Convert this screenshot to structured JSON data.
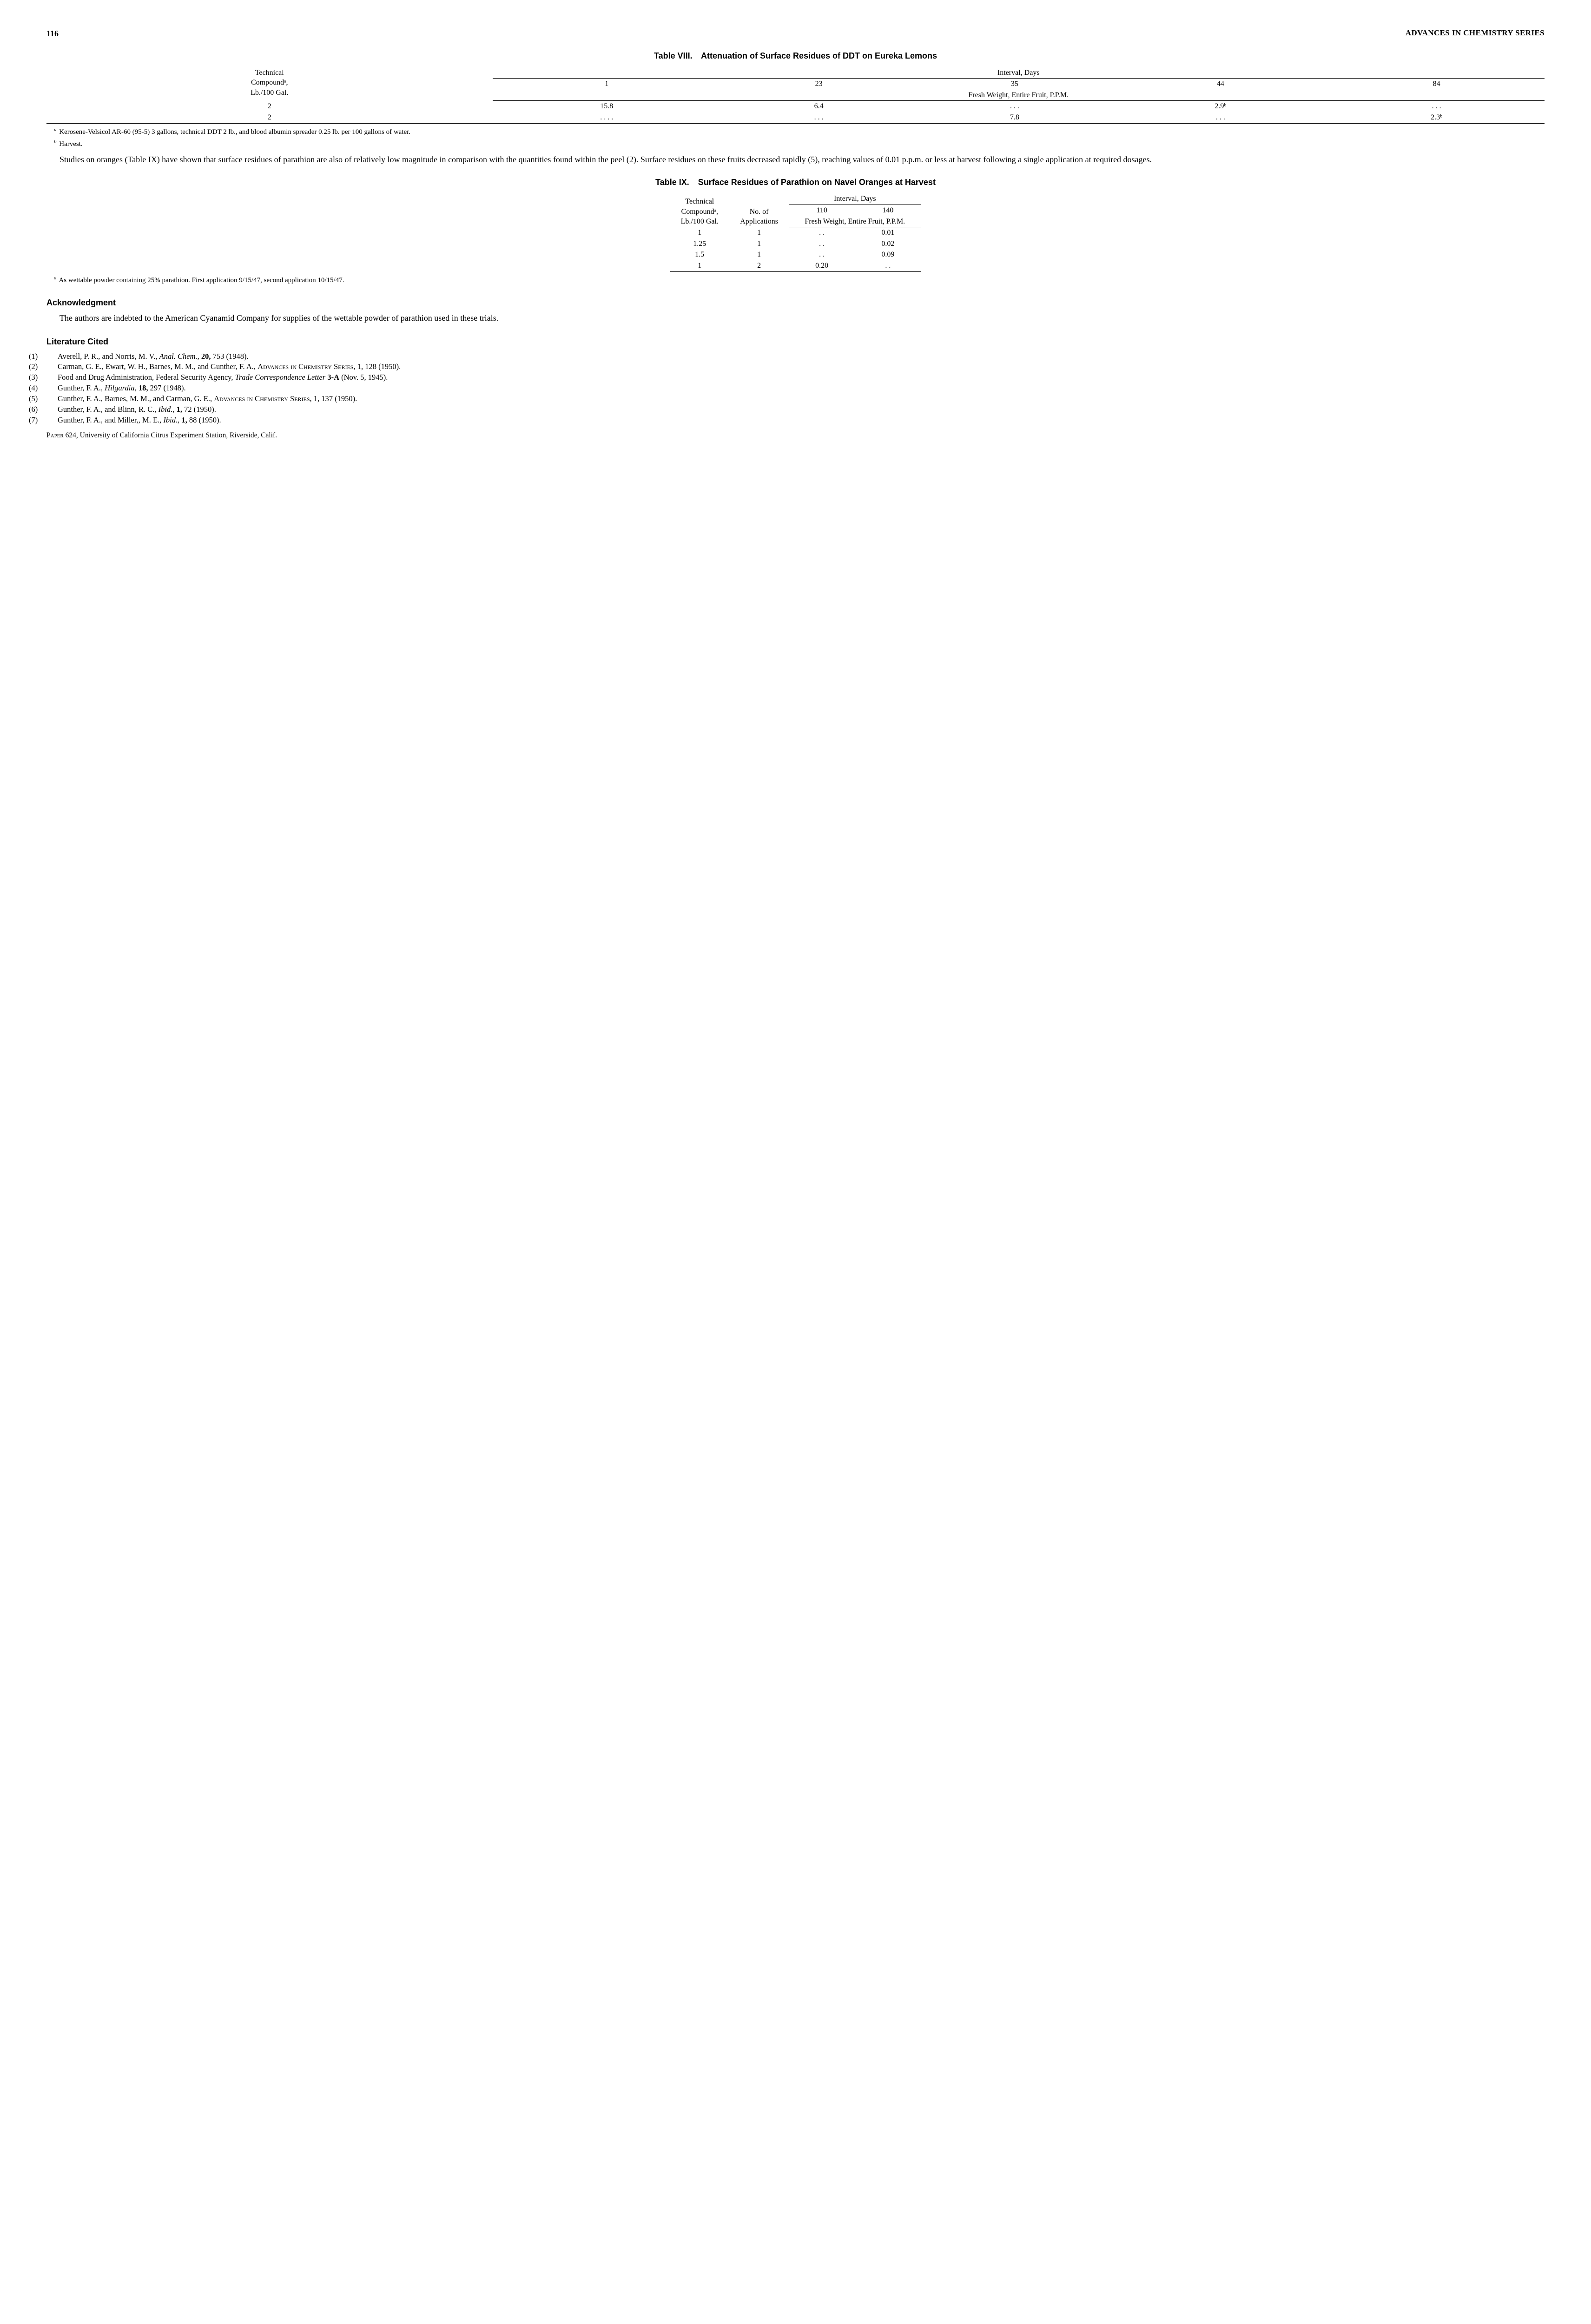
{
  "header": {
    "page": "116",
    "series": "ADVANCES IN CHEMISTRY SERIES"
  },
  "table8": {
    "title_no": "Table VIII.",
    "title_text": "Attenuation of Surface Residues of DDT on Eureka Lemons",
    "rowhead_l1": "Technical",
    "rowhead_l2": "Compoundᵃ,",
    "rowhead_l3": "Lb./100 Gal.",
    "spanning": "Interval, Days",
    "col1": "1",
    "col2": "23",
    "col3": "35",
    "col4": "44",
    "col5": "84",
    "subhead": "Fresh Weight, Entire Fruit, P.P.M.",
    "r1c0": "2",
    "r1c1": "15.8",
    "r1c2": "6.4",
    "r1c3": ". . .",
    "r1c4": "2.9ᵇ",
    "r1c5": ". . .",
    "r2c0": "2",
    "r2c1": ". . . .",
    "r2c2": ". . .",
    "r2c3": "7.8",
    "r2c4": ". . .",
    "r2c5": "2.3ᵇ",
    "fna": "Kerosene-Velsicol AR-60 (95-5) 3 gallons, technical DDT 2 lb., and blood albumin spreader 0.25 lb. per 100 gallons of water.",
    "fnb": "Harvest."
  },
  "para1": "Studies on oranges (Table IX) have shown that surface residues of parathion are also of relatively low magnitude in comparison with the quantities found within the peel (2). Surface residues on these fruits decreased rapidly (5), reaching values of 0.01 p.p.m. or less at harvest following a single application at required dosages.",
  "table9": {
    "title_no": "Table IX.",
    "title_text": "Surface Residues of Parathion on Navel Oranges at Harvest",
    "rowhead_l1": "Technical",
    "rowhead_l2": "Compoundᵃ,",
    "rowhead_l3": "Lb./100 Gal.",
    "col2_l1": "No. of",
    "col2_l2": "Applications",
    "spanning": "Interval, Days",
    "c110": "110",
    "c140": "140",
    "subhead": "Fresh Weight, Entire Fruit, P.P.M.",
    "r1c0": "1",
    "r1c1": "1",
    "r1c2": ". .",
    "r1c3": "0.01",
    "r2c0": "1.25",
    "r2c1": "1",
    "r2c2": ". .",
    "r2c3": "0.02",
    "r3c0": "1.5",
    "r3c1": "1",
    "r3c2": ". .",
    "r3c3": "0.09",
    "r4c0": "1",
    "r4c1": "2",
    "r4c2": "0.20",
    "r4c3": ". .",
    "fna": "As wettable powder containing 25% parathion.  First application 9/15/47, second application 10/15/47."
  },
  "ack": {
    "heading": "Acknowledgment",
    "text": "The authors are indebted to the American Cyanamid Company for supplies of the wettable powder of parathion used in these trials."
  },
  "lit": {
    "heading": "Literature Cited",
    "r1_a": "Averell, P. R., and Norris, M. V., ",
    "r1_i": "Anal. Chem., ",
    "r1_b": "20,",
    "r1_c": " 753 (1948).",
    "r2_a": "Carman, G. E., Ewart, W. H., Barnes, M. M., and Gunther, F. A., ",
    "r2_sc": "Advances in Chemistry Series,",
    "r2_b": " 1, 128 (1950).",
    "r3_a": "Food and Drug Administration, Federal Security Agency, ",
    "r3_i": "Trade Correspondence Letter",
    "r3_b": " 3-A",
    "r3_c": " (Nov. 5, 1945).",
    "r4_a": "Gunther, F. A., ",
    "r4_i": "Hilgardia,",
    "r4_b": " 18,",
    "r4_c": " 297 (1948).",
    "r5_a": "Gunther, F. A., Barnes, M. M., and Carman, G. E., ",
    "r5_sc": "Advances in Chemistry Series,",
    "r5_b": " 1, 137 (1950).",
    "r6_a": "Gunther, F. A., and Blinn, R. C., ",
    "r6_i": "Ibid.,",
    "r6_b": " 1,",
    "r6_c": " 72 (1950).",
    "r7_a": "Gunther, F. A., and Miller,, M. E., ",
    "r7_i": "Ibid.,",
    "r7_b": " 1,",
    "r7_c": " 88 (1950)."
  },
  "paperline_sc": "Paper",
  "paperline_rest": " 624, University of California Citrus Experiment Station, Riverside, Calif."
}
